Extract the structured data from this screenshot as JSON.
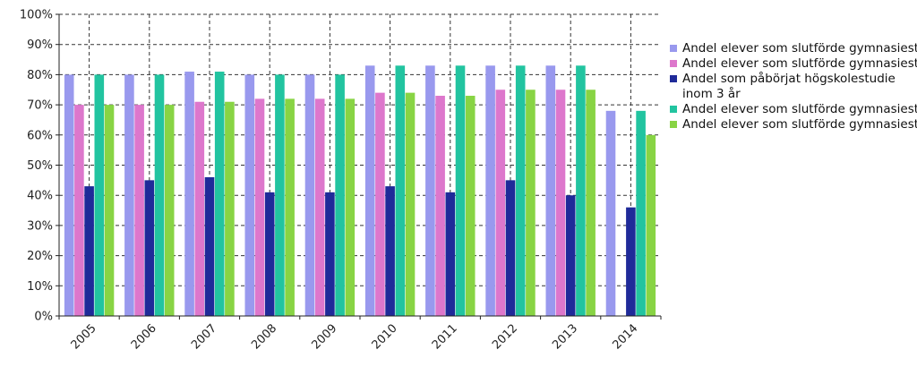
{
  "chart_data": {
    "type": "bar",
    "categories": [
      "2005",
      "2006",
      "2007",
      "2008",
      "2009",
      "2010",
      "2011",
      "2012",
      "2013",
      "2014"
    ],
    "ylim": [
      0,
      100
    ],
    "yticks": [
      "0%",
      "10%",
      "20%",
      "30%",
      "40%",
      "50%",
      "60%",
      "70%",
      "80%",
      "90%",
      "100%"
    ],
    "grid": true,
    "legend_position": "right",
    "series": [
      {
        "name": "Andel elever som slutförde gymnasiestu",
        "color": "#9999ee",
        "values": [
          80,
          80,
          81,
          80,
          80,
          83,
          83,
          83,
          83,
          68
        ]
      },
      {
        "name": "Andel elever som slutförde gymnasiestu",
        "color": "#dd77cc",
        "values": [
          70,
          70,
          71,
          72,
          72,
          74,
          73,
          75,
          75,
          null
        ]
      },
      {
        "name": "Andel som påbörjat högskolestudie inom 3 år",
        "color": "#1f2a99",
        "values": [
          43,
          45,
          46,
          41,
          41,
          43,
          41,
          45,
          40,
          36
        ]
      },
      {
        "name": "Andel elever som slutförde gymnasiestu",
        "color": "#22c4a0",
        "values": [
          80,
          80,
          81,
          80,
          80,
          83,
          83,
          83,
          83,
          68
        ]
      },
      {
        "name": "Andel elever som slutförde gymnasiestu",
        "color": "#88d444",
        "values": [
          70,
          70,
          71,
          72,
          72,
          74,
          73,
          75,
          75,
          60
        ]
      }
    ]
  }
}
